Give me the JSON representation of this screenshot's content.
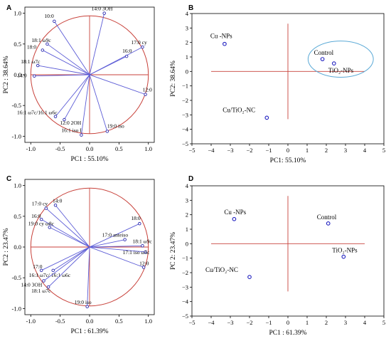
{
  "chart_data": [
    {
      "panel": "A",
      "type": "scatter",
      "subtype": "pca-loadings",
      "xlabel": "PC1 : 55.10%",
      "ylabel": "PC2 : 38.64%",
      "xlim": [
        -1.1,
        1.1
      ],
      "ylim": [
        -1.1,
        1.1
      ],
      "xticks": [
        "-1.0",
        "-0.5",
        "0.0",
        "0.5",
        "1.0"
      ],
      "yticks": [
        "1.0",
        "0.5",
        "0.0",
        "-0.5",
        "-1.0"
      ],
      "points": [
        {
          "label": "14:0 3OH",
          "x": 0.25,
          "y": 1.0
        },
        {
          "label": "10:0",
          "x": -0.6,
          "y": 0.87
        },
        {
          "label": "17:0 cy",
          "x": 0.9,
          "y": 0.45
        },
        {
          "label": "16:0",
          "x": 0.63,
          "y": 0.3
        },
        {
          "label": "18:1 ω9c",
          "x": -0.72,
          "y": 0.5
        },
        {
          "label": "18:0",
          "x": -0.8,
          "y": 0.4
        },
        {
          "label": "18:1 ω7c",
          "x": -0.88,
          "y": 0.15
        },
        {
          "label": "14:0",
          "x": -0.94,
          "y": -0.02
        },
        {
          "label": "12:0",
          "x": 0.95,
          "y": -0.32
        },
        {
          "label": "16:1 ω7c/16:1 ω6c",
          "x": -0.58,
          "y": -0.68
        },
        {
          "label": "12:0 2OH",
          "x": -0.43,
          "y": -0.73
        },
        {
          "label": "16:1 iso I",
          "x": -0.14,
          "y": -0.98
        },
        {
          "label": "19:0 iso",
          "x": 0.3,
          "y": -0.92
        }
      ]
    },
    {
      "panel": "B",
      "type": "scatter",
      "subtype": "pca-scores",
      "xlabel": "PC1: 55.10%",
      "ylabel": "PC2: 38.64%",
      "xlim": [
        -5,
        5
      ],
      "ylim": [
        -5,
        4
      ],
      "xticks": [
        "−5",
        "−4",
        "−3",
        "−2",
        "−1",
        "0",
        "1",
        "2",
        "3",
        "4",
        "5"
      ],
      "yticks": [
        "4",
        "3",
        "2",
        "1",
        "0",
        "−1",
        "−2",
        "−3",
        "−4",
        "−5"
      ],
      "points": [
        {
          "label": "Cu -NPs",
          "x": -3.3,
          "y": 1.9
        },
        {
          "label": "Control",
          "x": 1.8,
          "y": 0.85
        },
        {
          "label": "TiO₂-NPs",
          "x": 2.4,
          "y": 0.55
        },
        {
          "label": "Cu/TiO₂-NC",
          "x": -1.1,
          "y": -3.2
        }
      ]
    },
    {
      "panel": "C",
      "type": "scatter",
      "subtype": "pca-loadings",
      "xlabel": "PC1 : 61.39%",
      "ylabel": "PC2 : 23.47%",
      "xlim": [
        -1.1,
        1.1
      ],
      "ylim": [
        -1.1,
        1.1
      ],
      "xticks": [
        "-1.0",
        "-0.5",
        "0.0",
        "0.5",
        "1.0"
      ],
      "yticks": [
        "1.0",
        "0.5",
        "0.0",
        "-0.5",
        "-1.0"
      ],
      "points": [
        {
          "label": "14:0",
          "x": -0.58,
          "y": 0.68
        },
        {
          "label": "17:0 cy",
          "x": -0.74,
          "y": 0.63
        },
        {
          "label": "16:0",
          "x": -0.82,
          "y": 0.45
        },
        {
          "label": "19:0 cy ω8c",
          "x": -0.68,
          "y": 0.32
        },
        {
          "label": "18:0",
          "x": 0.85,
          "y": 0.38
        },
        {
          "label": "17:0 anteiso",
          "x": 0.6,
          "y": 0.12
        },
        {
          "label": "18:1 ω9c",
          "x": 0.9,
          "y": 0.02
        },
        {
          "label": "17:1 iso ω5c",
          "x": 0.95,
          "y": -0.08
        },
        {
          "label": "12:0",
          "x": 0.92,
          "y": -0.33
        },
        {
          "label": "16:1 ω7c/ 16:1 ω6c",
          "x": -0.62,
          "y": -0.38
        },
        {
          "label": "17:0",
          "x": -0.82,
          "y": -0.38
        },
        {
          "label": "14:0 3OH",
          "x": -0.78,
          "y": -0.55
        },
        {
          "label": "18:1 ω7c",
          "x": -0.7,
          "y": -0.65
        },
        {
          "label": "19:0 iso",
          "x": -0.04,
          "y": -0.97
        }
      ]
    },
    {
      "panel": "D",
      "type": "scatter",
      "subtype": "pca-scores",
      "xlabel": "PC1 : 61.39%",
      "ylabel": "PC 2: 23.47%",
      "xlim": [
        -5,
        5
      ],
      "ylim": [
        -5,
        4
      ],
      "xticks": [
        "−5",
        "−4",
        "−3",
        "−2",
        "−1",
        "0",
        "1",
        "2",
        "3",
        "4",
        "5"
      ],
      "yticks": [
        "4",
        "3",
        "2",
        "1",
        "0",
        "−1",
        "−2",
        "−3",
        "−4",
        "−5"
      ],
      "points": [
        {
          "label": "Cu -NPs",
          "x": -2.8,
          "y": 1.7
        },
        {
          "label": "Control",
          "x": 2.1,
          "y": 1.4
        },
        {
          "label": "TiO₂-NPs",
          "x": 2.9,
          "y": -0.9
        },
        {
          "label": "Cu/TiO₂-NC",
          "x": -2.0,
          "y": -2.3
        }
      ]
    }
  ],
  "colors": {
    "loading_line": "#5b5bd6",
    "point_stroke": "#1f1fc0",
    "circle_and_axes": "#c8423b",
    "group_ellipse": "#5aa9d6"
  }
}
